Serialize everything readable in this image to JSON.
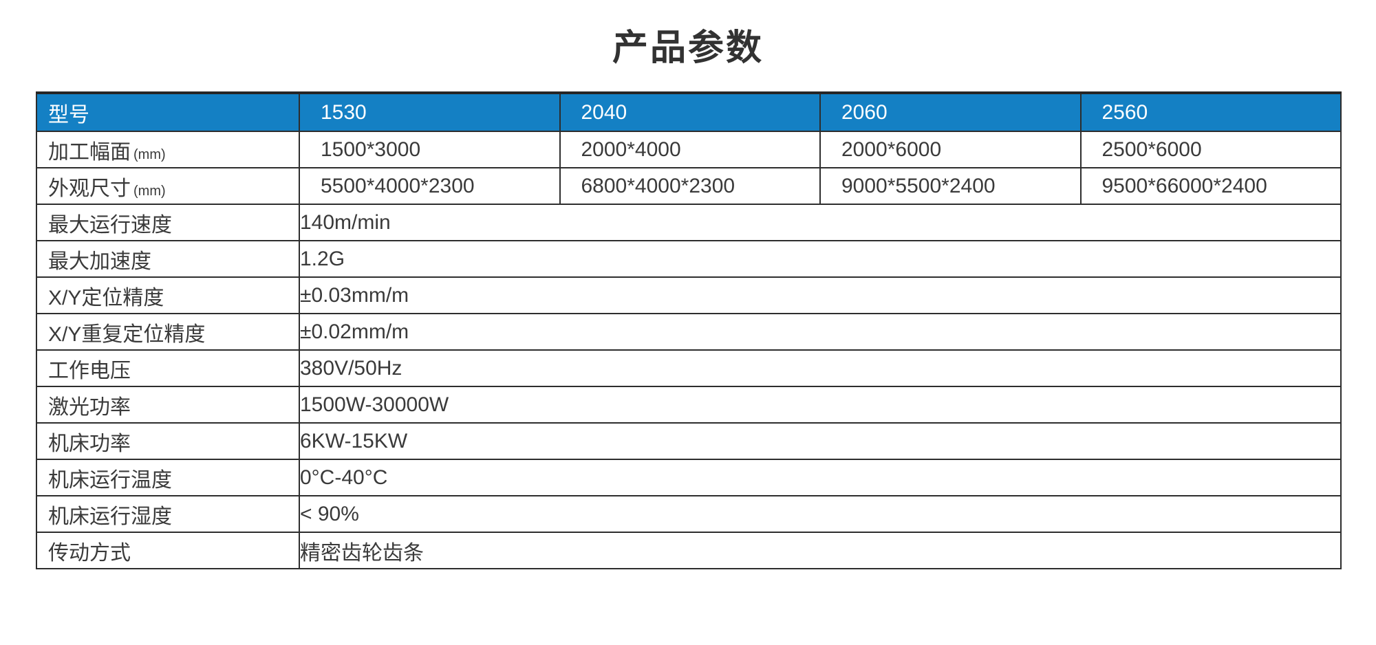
{
  "page": {
    "title": "产品参数"
  },
  "colors": {
    "header_background": "#1480c4",
    "header_text": "#ffffff",
    "border": "#2d2d2d",
    "body_text": "#3a3a3a",
    "title_text": "#323232",
    "page_background": "#ffffff"
  },
  "table": {
    "header": {
      "label": "型号",
      "models": [
        "1530",
        "2040",
        "2060",
        "2560"
      ]
    },
    "per_model_rows": [
      {
        "label": "加工幅面",
        "unit": "(mm)",
        "values": [
          "1500*3000",
          "2000*4000",
          "2000*6000",
          "2500*6000"
        ]
      },
      {
        "label": "外观尺寸",
        "unit": "(mm)",
        "values": [
          "5500*4000*2300",
          "6800*4000*2300",
          "9000*5500*2400",
          "9500*66000*2400"
        ]
      }
    ],
    "span_rows": [
      {
        "label": "最大运行速度",
        "value": "140m/min"
      },
      {
        "label": "最大加速度",
        "value": "1.2G"
      },
      {
        "label": "X/Y定位精度",
        "value": "±0.03mm/m"
      },
      {
        "label": "X/Y重复定位精度",
        "value": "±0.02mm/m"
      },
      {
        "label": "工作电压",
        "value": "380V/50Hz"
      },
      {
        "label": "激光功率",
        "value": "1500W-30000W"
      },
      {
        "label": "机床功率",
        "value": "6KW-15KW"
      },
      {
        "label": "机床运行温度",
        "value": "0°C-40°C"
      },
      {
        "label": "机床运行湿度",
        "value": "< 90%"
      },
      {
        "label": "传动方式",
        "value": "精密齿轮齿条"
      }
    ]
  }
}
